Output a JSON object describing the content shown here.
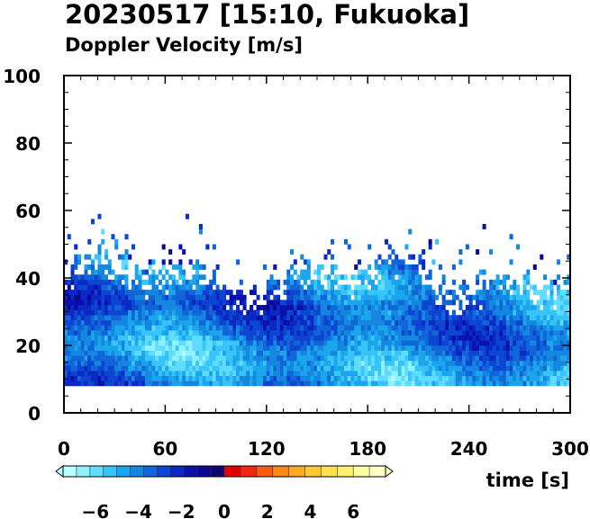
{
  "chart_data": {
    "type": "heatmap",
    "title": "20230517 [15:10, Fukuoka]",
    "subtitle": "Doppler Velocity [m/s]",
    "xlabel": "time [s]",
    "ylabel": "",
    "xlim": [
      0,
      300
    ],
    "ylim": [
      0,
      100
    ],
    "x_ticks": [
      "0",
      "60",
      "120",
      "180",
      "240",
      "300"
    ],
    "y_ticks": [
      "0",
      "20",
      "40",
      "60",
      "80",
      "100"
    ],
    "colorbar": {
      "labels": [
        "−6",
        "−4",
        "−2",
        "0",
        "2",
        "4",
        "6"
      ],
      "range": [
        -7.5,
        7.5
      ],
      "colors_negative": [
        "#b8ffff",
        "#90f2ff",
        "#5fdcff",
        "#38c4f8",
        "#1aa5ec",
        "#1487e0",
        "#1165d8",
        "#0c45d2",
        "#0a28c4",
        "#0a10ac",
        "#0a0890",
        "#0e0670"
      ],
      "colors_positive": [
        "#e00000",
        "#f02810",
        "#f85a12",
        "#fa8818",
        "#fcaa22",
        "#fcc834",
        "#fde04e",
        "#fdf070",
        "#feffa0",
        "#ffffc8"
      ]
    },
    "field": {
      "data_bottom": 8,
      "echo_top_mean": 42,
      "echo_top_range": [
        36,
        60
      ],
      "velocity_range": [
        -7,
        -1
      ],
      "description": "negative (downward) Doppler velocity echoes from ~8 m up to ~45 m with sparse points up to ~60 m"
    }
  }
}
